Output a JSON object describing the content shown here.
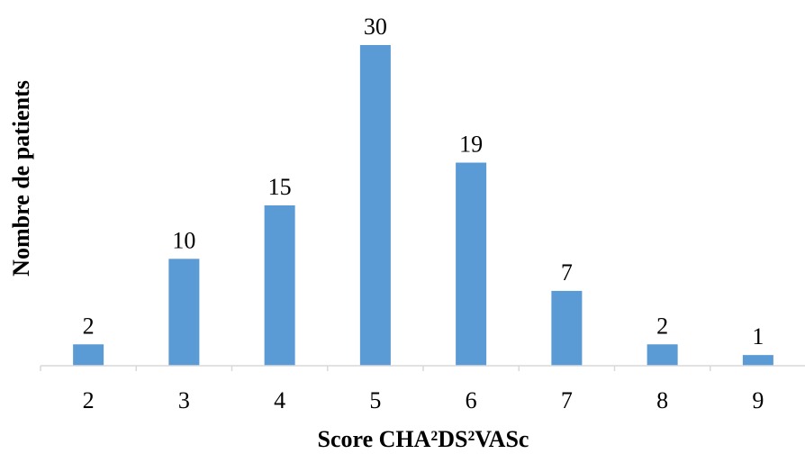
{
  "chart_data": {
    "type": "bar",
    "categories": [
      "2",
      "3",
      "4",
      "5",
      "6",
      "7",
      "8",
      "9"
    ],
    "values": [
      2,
      10,
      15,
      30,
      19,
      7,
      2,
      1
    ],
    "data_labels": [
      "2",
      "10",
      "15",
      "30",
      "19",
      "7",
      "2",
      "1"
    ],
    "xlabel": "Score CHA²DS²VASc",
    "ylabel": "Nombre de patients",
    "ylim": [
      0,
      30
    ],
    "grid": false,
    "legend": "none",
    "bar_color": "#5B9BD5",
    "axis_color": "#D9D9D9"
  }
}
